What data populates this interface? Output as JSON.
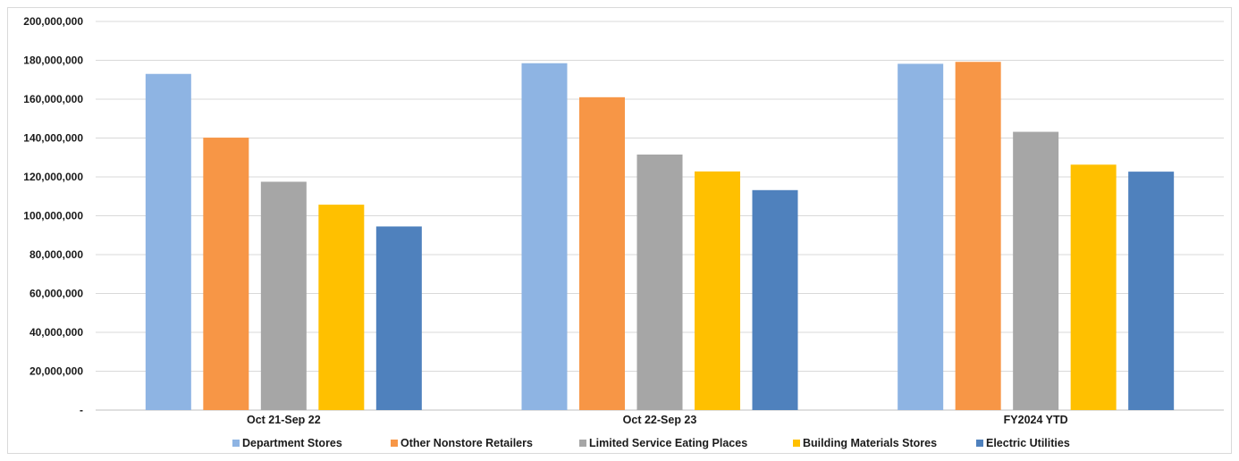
{
  "chart_data": {
    "type": "bar",
    "categories": [
      "Oct 21-Sep 22",
      "Oct 22-Sep 23",
      "FY2024 YTD"
    ],
    "series": [
      {
        "name": "Department Stores",
        "color": "#8eb4e3",
        "values": [
          173000000,
          178500000,
          178200000
        ]
      },
      {
        "name": "Other Nonstore Retailers",
        "color": "#f79646",
        "values": [
          140200000,
          161000000,
          179200000
        ]
      },
      {
        "name": "Limited Service Eating Places",
        "color": "#a6a6a6",
        "values": [
          117500000,
          131500000,
          143200000
        ]
      },
      {
        "name": "Building Materials Stores",
        "color": "#ffc000",
        "values": [
          105700000,
          122800000,
          126300000
        ]
      },
      {
        "name": "Electric Utilities",
        "color": "#4f81bd",
        "values": [
          94500000,
          113200000,
          122700000
        ]
      }
    ],
    "yticks": [
      "-",
      "20,000,000",
      "40,000,000",
      "60,000,000",
      "80,000,000",
      "100,000,000",
      "120,000,000",
      "140,000,000",
      "160,000,000",
      "180,000,000",
      "200,000,000"
    ],
    "ylim": [
      0,
      200000000
    ],
    "title": "",
    "xlabel": "",
    "ylabel": "",
    "grid": true,
    "legend_position": "bottom"
  }
}
